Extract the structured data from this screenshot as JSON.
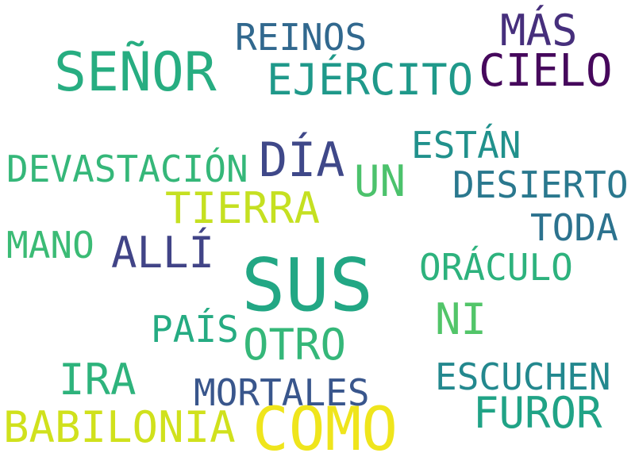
{
  "words": [
    {
      "text": "SUS",
      "color": "#22a784"
    },
    {
      "text": "COMO",
      "color": "#efe51c"
    },
    {
      "text": "SEÑOR",
      "color": "#27ad81"
    },
    {
      "text": "CIELO",
      "color": "#46085c"
    },
    {
      "text": "MÁS",
      "color": "#462f7c"
    },
    {
      "text": "EJÉRCITO",
      "color": "#1f998a"
    },
    {
      "text": "REINOS",
      "color": "#31688e"
    },
    {
      "text": "DÍA",
      "color": "#3f4889"
    },
    {
      "text": "DEVASTACIÓN",
      "color": "#35b779"
    },
    {
      "text": "UN",
      "color": "#4cc26c"
    },
    {
      "text": "ESTÁN",
      "color": "#21918c"
    },
    {
      "text": "DESIERTO",
      "color": "#2a788e"
    },
    {
      "text": "TIERRA",
      "color": "#c5e021"
    },
    {
      "text": "MANO",
      "color": "#3bbb75"
    },
    {
      "text": "ALLÍ",
      "color": "#414487"
    },
    {
      "text": "TODA",
      "color": "#2c728e"
    },
    {
      "text": "ORÁCULO",
      "color": "#2db27d"
    },
    {
      "text": "NI",
      "color": "#52c569"
    },
    {
      "text": "PAÍS",
      "color": "#25ab82"
    },
    {
      "text": "OTRO",
      "color": "#35b779"
    },
    {
      "text": "IRA",
      "color": "#2eb37c"
    },
    {
      "text": "ESCUCHEN",
      "color": "#23888e"
    },
    {
      "text": "MORTALES",
      "color": "#39568c"
    },
    {
      "text": "FUROR",
      "color": "#20a386"
    },
    {
      "text": "BABILONIA",
      "color": "#d0e11c"
    }
  ]
}
